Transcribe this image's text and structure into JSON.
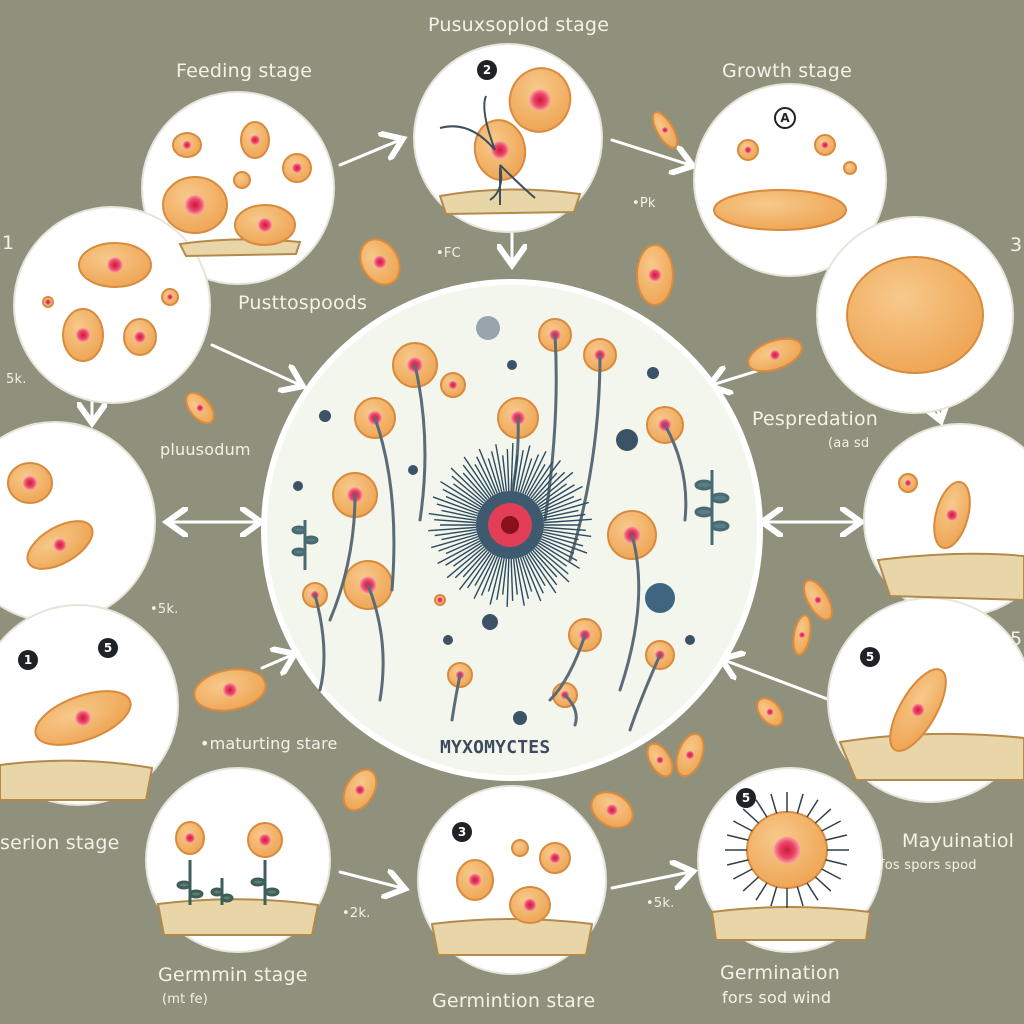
{
  "diagram": {
    "center": {
      "title": "MYXOMYCTES"
    },
    "labels": {
      "top_center": "Pusuxsoplod stage",
      "feeding": "Feeding stage",
      "growth": "Growth stage",
      "pustospods": "Pusttospoods",
      "plasmodium": "pluusodum",
      "pespredation": "Pespredation",
      "pespredation_sub": "(aa sd",
      "maturing": "•maturting stare",
      "serion": "serion stage",
      "germin": "Germmin stage",
      "germin_sub": "(mt fe)",
      "germintion": "Germintion stare",
      "germination": "Germination",
      "germination_sub": "fors sod wind",
      "maturation": "Mayuinatiol",
      "maturation_sub": "fos spors spod",
      "note_fc": "•FC",
      "note_pk": "•Pk",
      "note_5k_left": "5k.",
      "note_5k_mid": "•5k.",
      "note_2k": "•2k.",
      "note_5k_right": "•5k.",
      "edge_1": "1",
      "edge_3": "3",
      "edge_5": "5"
    },
    "badges": {
      "pseudopod": "2",
      "growth": "A",
      "fruit_left_a": "1",
      "fruit_left_b": "5",
      "right_lower": "5",
      "bottom_center": "3",
      "bottom_right": "5"
    },
    "colors": {
      "background": "#8f917d",
      "panel": "#ffffff",
      "center_panel": "#f2f6ec",
      "cell_fill": "#f2b26a",
      "cell_stroke": "#d98a3d",
      "nucleus": "#e8305a",
      "stalk": "#5b6b78",
      "soil": "#e9d6a8",
      "arrow": "#ffffff"
    }
  }
}
